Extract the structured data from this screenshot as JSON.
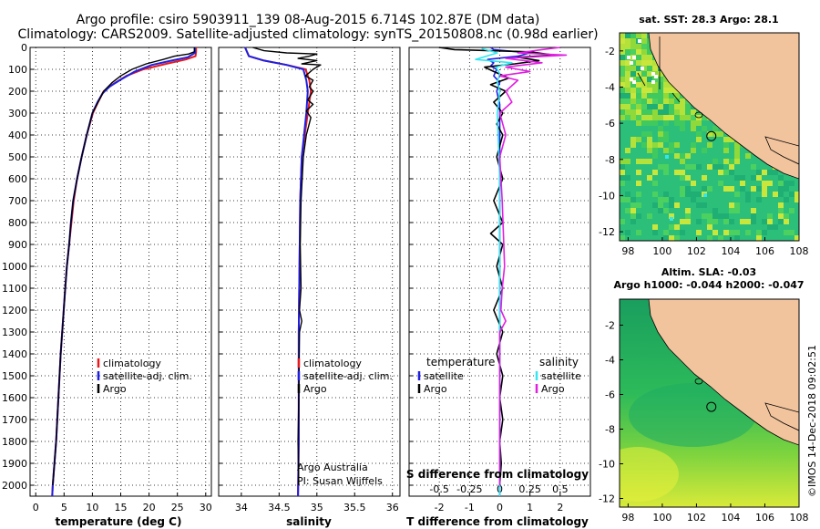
{
  "header": {
    "line1": "Argo profile: csiro 5903911_139 08-Aug-2015 6.714S 102.87E (DM data)",
    "line2": "Climatology: CARS2009. Satellite-adjusted climatology: synTS_20150808.nc (0.98d earlier)"
  },
  "depth_ticks": [
    0,
    100,
    200,
    300,
    400,
    500,
    600,
    700,
    800,
    900,
    1000,
    1100,
    1200,
    1300,
    1400,
    1500,
    1600,
    1700,
    1800,
    1900,
    2000
  ],
  "colors": {
    "climatology": "#e8191d",
    "satellite": "#1f1fe0",
    "argo": "#000000",
    "sal_satellite": "#33e6f0",
    "sal_argo": "#e01fe0",
    "land": "#f2c49e",
    "sst_bg": "#2bbf7a"
  },
  "chart_data": [
    {
      "type": "line",
      "name": "temperature-profile",
      "xlabel": "temperature (deg C)",
      "xlim": [
        -1,
        31
      ],
      "xticks": [
        0,
        5,
        10,
        15,
        20,
        25,
        30
      ],
      "ylim": [
        0,
        2050
      ],
      "legend": [
        "climatology",
        "satellite-adj. clim.",
        "Argo"
      ],
      "series": [
        {
          "name": "climatology",
          "points": [
            [
              28.3,
              0
            ],
            [
              28.3,
              20
            ],
            [
              28.2,
              40
            ],
            [
              26.5,
              55
            ],
            [
              23.0,
              75
            ],
            [
              19.0,
              100
            ],
            [
              16.0,
              130
            ],
            [
              13.5,
              170
            ],
            [
              12.0,
              200
            ],
            [
              11.0,
              250
            ],
            [
              10.1,
              300
            ],
            [
              9.0,
              400
            ],
            [
              8.1,
              500
            ],
            [
              7.3,
              600
            ],
            [
              6.7,
              700
            ],
            [
              6.3,
              800
            ],
            [
              5.9,
              900
            ],
            [
              5.5,
              1000
            ],
            [
              5.2,
              1100
            ],
            [
              4.8,
              1250
            ],
            [
              4.4,
              1400
            ],
            [
              4.0,
              1600
            ],
            [
              3.6,
              1800
            ],
            [
              3.0,
              2000
            ],
            [
              2.9,
              2050
            ]
          ]
        },
        {
          "name": "satellite-adj. clim.",
          "points": [
            [
              28.1,
              0
            ],
            [
              28.1,
              25
            ],
            [
              26.8,
              45
            ],
            [
              24.0,
              60
            ],
            [
              20.5,
              80
            ],
            [
              17.5,
              110
            ],
            [
              14.8,
              150
            ],
            [
              13.0,
              180
            ],
            [
              11.8,
              210
            ],
            [
              10.9,
              250
            ],
            [
              10.0,
              300
            ],
            [
              9.0,
              400
            ],
            [
              8.1,
              500
            ],
            [
              7.3,
              600
            ],
            [
              6.6,
              700
            ],
            [
              6.2,
              800
            ],
            [
              5.9,
              900
            ],
            [
              5.5,
              1000
            ],
            [
              5.2,
              1100
            ],
            [
              4.8,
              1250
            ],
            [
              4.4,
              1400
            ],
            [
              4.0,
              1600
            ],
            [
              3.6,
              1800
            ],
            [
              3.0,
              2000
            ],
            [
              2.9,
              2050
            ]
          ]
        },
        {
          "name": "Argo",
          "points": [
            [
              28.0,
              0
            ],
            [
              28.0,
              20
            ],
            [
              27.0,
              30
            ],
            [
              24.5,
              40
            ],
            [
              22.5,
              55
            ],
            [
              19.5,
              75
            ],
            [
              17.0,
              100
            ],
            [
              15.0,
              130
            ],
            [
              13.5,
              160
            ],
            [
              12.0,
              200
            ],
            [
              11.0,
              250
            ],
            [
              10.0,
              300
            ],
            [
              9.0,
              400
            ],
            [
              8.1,
              500
            ],
            [
              7.3,
              600
            ],
            [
              6.6,
              700
            ],
            [
              6.2,
              800
            ],
            [
              5.9,
              900
            ],
            [
              5.5,
              1000
            ],
            [
              5.2,
              1100
            ],
            [
              4.8,
              1250
            ],
            [
              4.4,
              1400
            ],
            [
              4.0,
              1600
            ],
            [
              3.6,
              1800
            ],
            [
              3.0,
              2000
            ]
          ]
        }
      ]
    },
    {
      "type": "line",
      "name": "salinity-profile",
      "xlabel": "salinity",
      "xlim": [
        33.7,
        36.1
      ],
      "xticks": [
        34,
        34.5,
        35,
        35.5,
        36
      ],
      "ylim": [
        0,
        2050
      ],
      "legend": [
        "climatology",
        "satellite-adj. clim.",
        "Argo"
      ],
      "footnote": [
        "Argo Australia",
        "PI: Susan Wijffels"
      ],
      "series": [
        {
          "name": "climatology",
          "points": [
            [
              34.05,
              0
            ],
            [
              34.1,
              40
            ],
            [
              34.3,
              60
            ],
            [
              34.6,
              80
            ],
            [
              34.85,
              100
            ],
            [
              34.9,
              150
            ],
            [
              34.92,
              200
            ],
            [
              34.9,
              250
            ],
            [
              34.88,
              300
            ],
            [
              34.84,
              400
            ],
            [
              34.8,
              500
            ],
            [
              34.78,
              700
            ],
            [
              34.77,
              1000
            ],
            [
              34.76,
              1300
            ],
            [
              34.76,
              1600
            ],
            [
              34.76,
              1800
            ],
            [
              34.75,
              2050
            ]
          ]
        },
        {
          "name": "satellite-adj. clim.",
          "points": [
            [
              34.05,
              0
            ],
            [
              34.1,
              40
            ],
            [
              34.3,
              60
            ],
            [
              34.6,
              80
            ],
            [
              34.82,
              100
            ],
            [
              34.86,
              150
            ],
            [
              34.88,
              200
            ],
            [
              34.87,
              250
            ],
            [
              34.86,
              300
            ],
            [
              34.83,
              400
            ],
            [
              34.8,
              500
            ],
            [
              34.78,
              700
            ],
            [
              34.77,
              1000
            ],
            [
              34.76,
              1300
            ],
            [
              34.76,
              1600
            ],
            [
              34.76,
              1800
            ],
            [
              34.75,
              2050
            ]
          ]
        },
        {
          "name": "Argo",
          "points": [
            [
              34.15,
              0
            ],
            [
              34.3,
              15
            ],
            [
              34.6,
              25
            ],
            [
              35.0,
              30
            ],
            [
              34.9,
              40
            ],
            [
              34.75,
              50
            ],
            [
              35.0,
              60
            ],
            [
              34.8,
              75
            ],
            [
              35.05,
              80
            ],
            [
              34.95,
              100
            ],
            [
              34.85,
              130
            ],
            [
              34.95,
              150
            ],
            [
              34.9,
              180
            ],
            [
              34.95,
              200
            ],
            [
              34.88,
              240
            ],
            [
              34.95,
              260
            ],
            [
              34.86,
              290
            ],
            [
              34.92,
              320
            ],
            [
              34.86,
              400
            ],
            [
              34.82,
              500
            ],
            [
              34.79,
              700
            ],
            [
              34.78,
              900
            ],
            [
              34.79,
              1100
            ],
            [
              34.77,
              1200
            ],
            [
              34.8,
              1250
            ],
            [
              34.77,
              1300
            ],
            [
              34.76,
              1600
            ],
            [
              34.75,
              1800
            ],
            [
              34.76,
              2000
            ]
          ]
        }
      ]
    },
    {
      "type": "line",
      "name": "difference-profile",
      "xlabel": "T difference from climatology",
      "xlabel_top": "S difference from climatology",
      "xlim": [
        -3,
        3
      ],
      "xticks": [
        -2,
        -1,
        0,
        1,
        2
      ],
      "sticks": [
        -0.5,
        -0.25,
        0,
        0.25,
        0.5
      ],
      "stick_labels": [
        "-0.5",
        "-0.25",
        "0",
        "0.25",
        "0.5"
      ],
      "ylim": [
        0,
        2050
      ],
      "legend_left_title": "temperature",
      "legend_right_title": "salinity",
      "legend_left": [
        "satellite",
        "Argo"
      ],
      "legend_right": [
        "satellite",
        "Argo"
      ],
      "series": [
        {
          "name": "T satellite",
          "points": [
            [
              -0.3,
              0
            ],
            [
              -0.2,
              10
            ],
            [
              1.0,
              25
            ],
            [
              0.6,
              40
            ],
            [
              -0.4,
              55
            ],
            [
              -0.2,
              70
            ],
            [
              -0.3,
              85
            ],
            [
              -0.1,
              100
            ],
            [
              -0.2,
              130
            ],
            [
              0.0,
              160
            ],
            [
              -0.1,
              200
            ],
            [
              0.0,
              260
            ],
            [
              0.0,
              400
            ],
            [
              0.0,
              800
            ],
            [
              0.0,
              1200
            ],
            [
              0.0,
              2050
            ]
          ]
        },
        {
          "name": "T Argo",
          "points": [
            [
              -2.0,
              0
            ],
            [
              -1.5,
              10
            ],
            [
              1.0,
              20
            ],
            [
              1.8,
              35
            ],
            [
              0.6,
              45
            ],
            [
              1.3,
              60
            ],
            [
              0.5,
              75
            ],
            [
              -0.5,
              90
            ],
            [
              -0.2,
              110
            ],
            [
              0.3,
              140
            ],
            [
              -0.3,
              170
            ],
            [
              0.2,
              200
            ],
            [
              -0.2,
              250
            ],
            [
              0.1,
              300
            ],
            [
              -0.1,
              350
            ],
            [
              0.1,
              400
            ],
            [
              -0.1,
              500
            ],
            [
              0.1,
              600
            ],
            [
              -0.2,
              700
            ],
            [
              0.1,
              800
            ],
            [
              -0.3,
              850
            ],
            [
              0.1,
              900
            ],
            [
              -0.1,
              1000
            ],
            [
              0.1,
              1100
            ],
            [
              -0.2,
              1200
            ],
            [
              0.1,
              1300
            ],
            [
              -0.1,
              1400
            ],
            [
              0.1,
              1500
            ],
            [
              0.0,
              1600
            ],
            [
              0.1,
              1700
            ],
            [
              0.0,
              1800
            ],
            [
              0.05,
              1900
            ],
            [
              0.0,
              2000
            ]
          ]
        },
        {
          "name": "S satellite",
          "points": [
            [
              -0.15,
              5
            ],
            [
              -0.02,
              25
            ],
            [
              -0.2,
              55
            ],
            [
              0.1,
              70
            ],
            [
              -0.03,
              90
            ],
            [
              0.0,
              120
            ],
            [
              -0.02,
              160
            ],
            [
              0.0,
              200
            ],
            [
              -0.02,
              300
            ],
            [
              0.0,
              600
            ],
            [
              0.0,
              1000
            ],
            [
              0.0,
              1500
            ],
            [
              0.0,
              2050
            ]
          ]
        },
        {
          "name": "S Argo",
          "points": [
            [
              0.5,
              0
            ],
            [
              0.35,
              10
            ],
            [
              0.15,
              25
            ],
            [
              0.55,
              35
            ],
            [
              0.05,
              50
            ],
            [
              0.35,
              70
            ],
            [
              0.05,
              90
            ],
            [
              0.25,
              110
            ],
            [
              0.0,
              130
            ],
            [
              0.15,
              150
            ],
            [
              0.05,
              200
            ],
            [
              0.1,
              250
            ],
            [
              0.0,
              300
            ],
            [
              0.05,
              400
            ],
            [
              0.0,
              500
            ],
            [
              0.02,
              700
            ],
            [
              0.04,
              1000
            ],
            [
              0.02,
              1100
            ],
            [
              0.01,
              1200
            ],
            [
              0.05,
              1250
            ],
            [
              0.0,
              1300
            ],
            [
              0.0,
              1600
            ],
            [
              0.0,
              2000
            ]
          ]
        }
      ]
    },
    {
      "type": "heatmap",
      "name": "sst-map",
      "title": "sat. SST: 28.3  Argo: 28.1",
      "xlim": [
        97.5,
        108
      ],
      "ylim": [
        -12.5,
        -1
      ],
      "xticks": [
        98,
        100,
        102,
        104,
        106,
        108
      ],
      "yticks": [
        -2,
        -4,
        -6,
        -8,
        -10,
        -12
      ],
      "argo_location": [
        102.87,
        -6.714
      ]
    },
    {
      "type": "heatmap",
      "name": "sla-map",
      "title": "Altim. SLA: -0.03",
      "subtitle": "Argo h1000: -0.044 h2000: -0.047",
      "xlim": [
        97.5,
        108
      ],
      "ylim": [
        -12.5,
        -0.5
      ],
      "xticks": [
        98,
        100,
        102,
        104,
        106,
        108
      ],
      "yticks": [
        -2,
        -4,
        -6,
        -8,
        -10,
        -12
      ],
      "argo_location": [
        102.87,
        -6.714
      ]
    }
  ],
  "credit": "©IMOS 14-Dec-2018 09:02:51"
}
